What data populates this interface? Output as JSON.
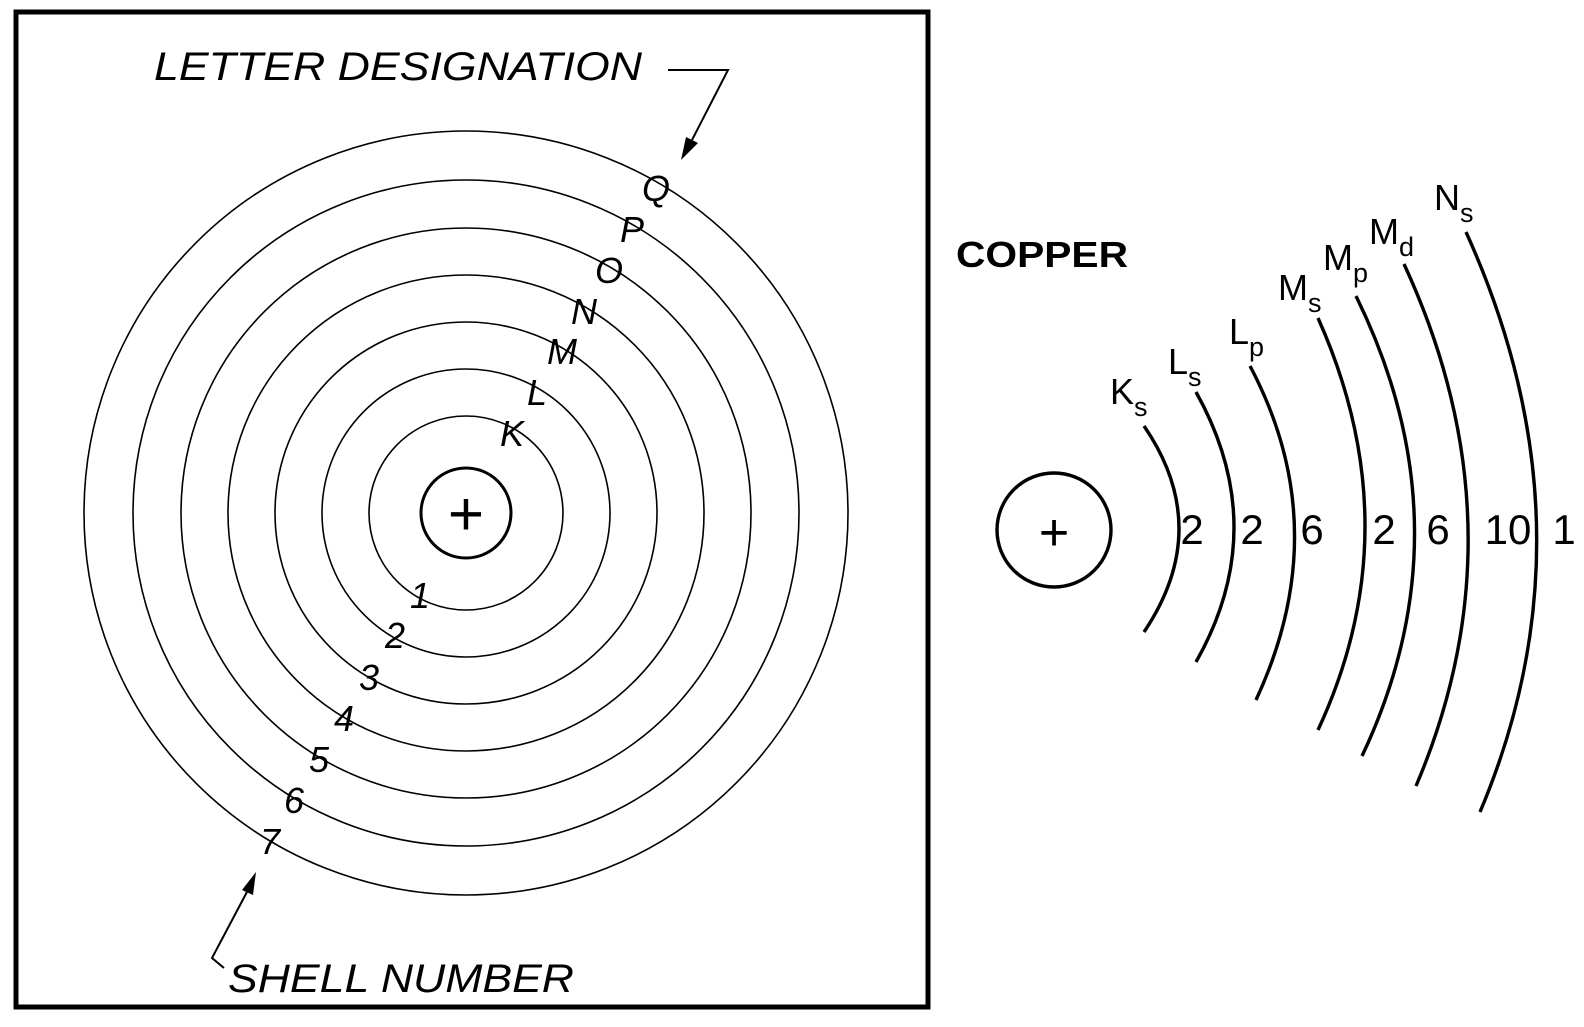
{
  "left_panel": {
    "top_label": "LETTER DESIGNATION",
    "bottom_label": "SHELL NUMBER",
    "nucleus_symbol": "+",
    "shells": [
      {
        "letter": "K",
        "number": "1"
      },
      {
        "letter": "L",
        "number": "2"
      },
      {
        "letter": "M",
        "number": "3"
      },
      {
        "letter": "N",
        "number": "4"
      },
      {
        "letter": "O",
        "number": "5"
      },
      {
        "letter": "P",
        "number": "6"
      },
      {
        "letter": "Q",
        "number": "7"
      }
    ]
  },
  "right_panel": {
    "element_name": "COPPER",
    "nucleus_symbol": "+",
    "subshells": [
      {
        "letter": "K",
        "sub": "s",
        "electrons": "2"
      },
      {
        "letter": "L",
        "sub": "s",
        "electrons": "2"
      },
      {
        "letter": "L",
        "sub": "p",
        "electrons": "6"
      },
      {
        "letter": "M",
        "sub": "s",
        "electrons": "2"
      },
      {
        "letter": "M",
        "sub": "p",
        "electrons": "6"
      },
      {
        "letter": "M",
        "sub": "d",
        "electrons": "10"
      },
      {
        "letter": "N",
        "sub": "s",
        "electrons": "1"
      }
    ]
  }
}
